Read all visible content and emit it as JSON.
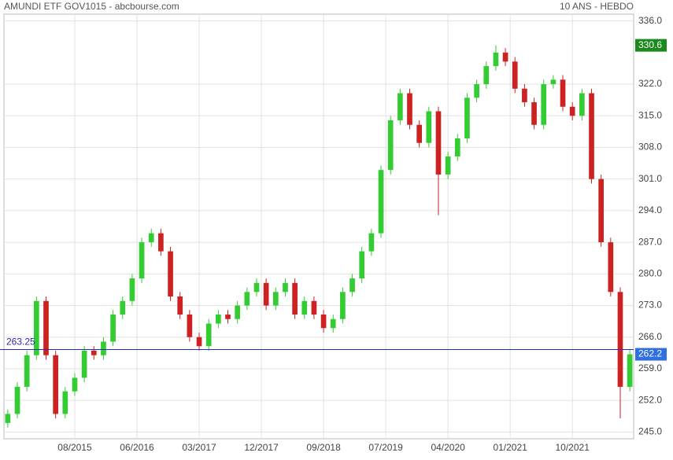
{
  "chart_data": {
    "type": "candlestick",
    "title": "AMUNDI ETF GOV1015 - abcbourse.com",
    "subtitle": "10 ANS - HEBDO",
    "open": [
      247,
      249,
      255,
      262,
      274,
      262,
      249,
      254,
      257,
      263,
      262,
      265,
      271,
      274,
      279,
      287,
      289,
      285,
      275,
      271,
      266,
      264,
      269,
      271,
      270,
      273,
      276,
      278,
      273,
      276,
      278,
      271,
      274,
      271,
      268,
      270,
      276,
      279,
      285,
      289,
      303,
      314,
      320,
      313,
      309,
      316,
      302,
      306,
      310,
      319,
      322,
      326,
      329,
      327,
      321,
      318,
      313,
      322,
      323,
      317,
      315,
      320,
      301,
      287,
      276,
      255
    ],
    "high": [
      250,
      256,
      263,
      275,
      275,
      263,
      255,
      258,
      264,
      264,
      266,
      272,
      275,
      280,
      288,
      290,
      290,
      286,
      276,
      272,
      267,
      270,
      272,
      272,
      274,
      277,
      279,
      279,
      277,
      279,
      279,
      275,
      275,
      272,
      271,
      277,
      280,
      286,
      290,
      304,
      315,
      321,
      321,
      314,
      317,
      317,
      307,
      311,
      320,
      323,
      327,
      330.6,
      330,
      328,
      322,
      319,
      323,
      324,
      324,
      318,
      321,
      321,
      302,
      288,
      277,
      263.2
    ],
    "low": [
      246,
      248,
      254,
      261,
      261,
      248,
      248,
      253,
      256,
      261,
      261,
      264,
      270,
      273,
      278,
      286,
      284,
      274,
      270,
      265,
      263,
      263,
      268,
      269,
      269,
      272,
      275,
      272,
      272,
      275,
      270,
      270,
      270,
      267,
      267,
      269,
      275,
      278,
      284,
      288,
      302,
      313,
      312,
      308,
      308,
      293,
      301,
      305,
      309,
      318,
      321,
      325,
      326,
      320,
      317,
      312,
      312,
      321,
      316,
      314,
      314,
      300,
      286,
      275,
      248,
      254
    ],
    "close": [
      249,
      255,
      262,
      274,
      262,
      249,
      254,
      257,
      263,
      262,
      265,
      271,
      274,
      279,
      287,
      289,
      285,
      275,
      271,
      266,
      264,
      269,
      271,
      270,
      273,
      276,
      278,
      273,
      276,
      278,
      271,
      274,
      271,
      268,
      270,
      276,
      279,
      285,
      289,
      303,
      314,
      320,
      313,
      309,
      316,
      302,
      306,
      310,
      319,
      322,
      326,
      329,
      327,
      321,
      318,
      313,
      322,
      323,
      317,
      315,
      320,
      301,
      287,
      276,
      255,
      262.2
    ],
    "up_color": "#33cc33",
    "down_color": "#cc2222",
    "xlim": [
      -0.4,
      65.4
    ],
    "xticks": [
      {
        "value": 7,
        "label": "08/2015"
      },
      {
        "value": 13.5,
        "label": "06/2016"
      },
      {
        "value": 20,
        "label": "03/2017"
      },
      {
        "value": 26.5,
        "label": "12/2017"
      },
      {
        "value": 33,
        "label": "09/2018"
      },
      {
        "value": 39.5,
        "label": "07/2019"
      },
      {
        "value": 46,
        "label": "04/2020"
      },
      {
        "value": 52.5,
        "label": "01/2021"
      },
      {
        "value": 59,
        "label": "10/2021"
      }
    ],
    "ylim": [
      243.5,
      337.5
    ],
    "yticks": [
      {
        "value": 245,
        "label": "245.0"
      },
      {
        "value": 252,
        "label": "252.0"
      },
      {
        "value": 259,
        "label": "259.0"
      },
      {
        "value": 266,
        "label": "266.0"
      },
      {
        "value": 273,
        "label": "273.0"
      },
      {
        "value": 280,
        "label": "280.0"
      },
      {
        "value": 287,
        "label": "287.0"
      },
      {
        "value": 294,
        "label": "294.0"
      },
      {
        "value": 301,
        "label": "301.0"
      },
      {
        "value": 308,
        "label": "308.0"
      },
      {
        "value": 315,
        "label": "315.0"
      },
      {
        "value": 322,
        "label": "322.0"
      },
      {
        "value": 336,
        "label": "336.0"
      }
    ],
    "reference_line": 263.25,
    "max_marker": 330.6,
    "last_marker": 262.2,
    "grid": true
  }
}
